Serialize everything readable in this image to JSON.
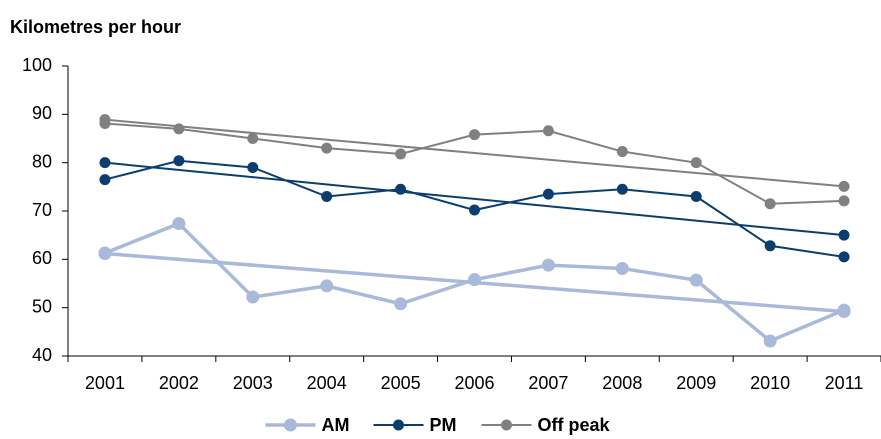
{
  "chart_data": {
    "type": "line",
    "title": "Kilometres per hour",
    "categories": [
      "2001",
      "2002",
      "2003",
      "2004",
      "2005",
      "2006",
      "2007",
      "2008",
      "2009",
      "2010",
      "2011"
    ],
    "series": [
      {
        "name": "AM",
        "color": "#a9b9d9",
        "values": [
          61.3,
          67.4,
          52.2,
          54.5,
          50.8,
          55.8,
          58.8,
          58.1,
          55.7,
          43.1,
          49.5
        ],
        "trend": [
          61.2,
          49.2
        ]
      },
      {
        "name": "PM",
        "color": "#0b3e6f",
        "values": [
          76.5,
          80.4,
          79,
          73,
          74.5,
          70.2,
          73.5,
          74.5,
          73,
          62.8,
          60.5
        ],
        "trend": [
          80,
          65
        ]
      },
      {
        "name": "Off peak",
        "color": "#808080",
        "values": [
          88.1,
          87,
          85,
          83,
          81.8,
          85.8,
          86.6,
          82.3,
          80,
          71.5,
          72.1
        ],
        "trend": [
          88.9,
          75.1
        ]
      }
    ],
    "ylim": [
      40,
      100
    ],
    "yticks": [
      40,
      50,
      60,
      70,
      80,
      90,
      100
    ]
  }
}
